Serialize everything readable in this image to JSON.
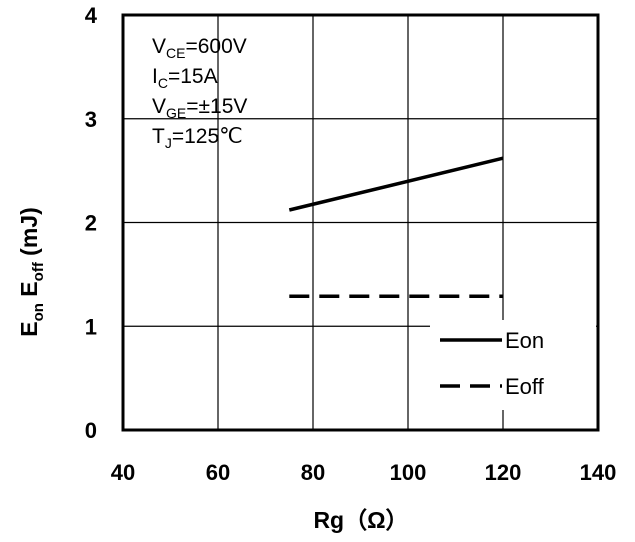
{
  "chart_data": {
    "type": "line",
    "xlabel": "Rg（Ω）",
    "ylabel": {
      "main1": "E",
      "sub1": "on",
      "mid": " E",
      "sub2": "off",
      "unit": " (mJ)"
    },
    "xlim": [
      40,
      140
    ],
    "ylim": [
      0,
      4
    ],
    "x_ticks": [
      "40",
      "60",
      "80",
      "100",
      "120",
      "140"
    ],
    "y_ticks": [
      "0",
      "1",
      "2",
      "3",
      "4"
    ],
    "grid": true,
    "legend_position": "bottom-right",
    "series": [
      {
        "name": "Eon",
        "style": "solid",
        "x": [
          75,
          120
        ],
        "y": [
          2.12,
          2.62
        ]
      },
      {
        "name": "Eoff",
        "style": "dashed",
        "x": [
          75,
          120
        ],
        "y": [
          1.29,
          1.29
        ]
      }
    ],
    "conditions": [
      {
        "main": "V",
        "sub": "CE",
        "rest": "=600V"
      },
      {
        "main": "I",
        "sub": "C",
        "rest": "=15A"
      },
      {
        "main": "V",
        "sub": "GE",
        "rest": "=±15V"
      },
      {
        "main": "T",
        "sub": "J",
        "rest": "=125℃"
      }
    ]
  }
}
